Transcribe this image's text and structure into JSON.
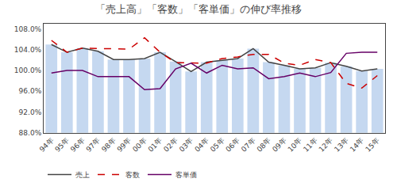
{
  "chart_data": {
    "type": "bar",
    "title": "「売上高」「客数」「客単価」の伸び率推移",
    "categories": [
      "94年",
      "95年",
      "96年",
      "97年",
      "98年",
      "99年",
      "00年",
      "01年",
      "02年",
      "03年",
      "04年",
      "05年",
      "06年",
      "07年",
      "08年",
      "09年",
      "10年",
      "11年",
      "12年",
      "13年",
      "14年",
      "15年"
    ],
    "series": [
      {
        "type": "bar",
        "color": "#c5d8f0",
        "values": [
          105.0,
          103.5,
          104.3,
          103.7,
          102.1,
          102.1,
          102.3,
          103.5,
          101.7,
          99.8,
          101.6,
          102.0,
          102.3,
          104.2,
          101.6,
          101.0,
          100.3,
          100.5,
          101.5,
          100.8,
          99.9,
          100.3
        ]
      },
      {
        "name": "売上",
        "type": "line",
        "color": "#444444",
        "line_style": "solid",
        "values": [
          105.0,
          103.5,
          104.3,
          103.7,
          102.1,
          102.1,
          102.3,
          103.5,
          101.7,
          99.8,
          101.6,
          102.0,
          102.3,
          104.2,
          101.6,
          101.0,
          100.3,
          100.5,
          101.5,
          100.8,
          99.9,
          100.3
        ]
      },
      {
        "name": "客数",
        "type": "line",
        "color": "#cc0000",
        "line_style": "dashed",
        "values": [
          105.8,
          103.5,
          104.3,
          104.2,
          104.2,
          104.1,
          106.3,
          103.5,
          101.5,
          101.5,
          101.4,
          102.3,
          102.6,
          103.1,
          103.1,
          101.4,
          101.0,
          102.1,
          101.5,
          97.5,
          96.6,
          99.0
        ]
      },
      {
        "name": "客単価",
        "type": "line",
        "color": "#660066",
        "line_style": "solid",
        "values": [
          99.5,
          100.0,
          100.0,
          98.8,
          98.8,
          98.8,
          96.3,
          96.5,
          100.3,
          101.4,
          99.5,
          101.0,
          100.3,
          100.5,
          98.4,
          98.8,
          99.5,
          98.8,
          99.6,
          103.3,
          103.5,
          103.5
        ]
      }
    ],
    "ylim": [
      88.0,
      109.0
    ],
    "yticks": [
      {
        "value": 88.0,
        "label": "88.0%"
      },
      {
        "value": 92.0,
        "label": "92.0%"
      },
      {
        "value": 96.0,
        "label": "96.0%"
      },
      {
        "value": 100.0,
        "label": "100.0%"
      },
      {
        "value": 104.0,
        "label": "104.0%"
      },
      {
        "value": 108.0,
        "label": "108.0%"
      }
    ],
    "grid": false,
    "legend": "lower left"
  }
}
